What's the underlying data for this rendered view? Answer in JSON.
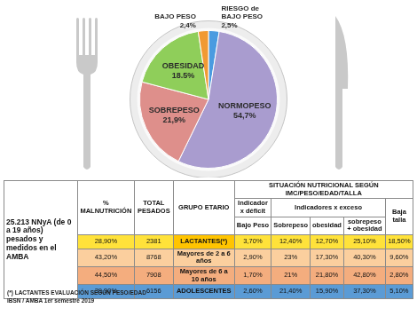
{
  "chart_data": {
    "type": "pie",
    "categories": [
      "RIESGO de BAJO PESO",
      "NORMOPESO",
      "SOBREPESO",
      "OBESIDAD",
      "BAJO PESO"
    ],
    "values": [
      2.5,
      54.7,
      21.9,
      18.5,
      2.4
    ],
    "value_labels": [
      "2,5%",
      "54,7%",
      "21,9%",
      "18.5%",
      "2,4%"
    ],
    "colors": [
      "#4a9be0",
      "#a99ccf",
      "#de8f8b",
      "#8fce5a",
      "#f19a33"
    ],
    "data_labels": true
  },
  "table": {
    "title": "25.213 NNyA (de 0 a 19 años) pesados y medidos en el AMBA",
    "columns": [
      "% MALNUTRICIÓN",
      "TOTAL PESADOS",
      "GRUPO ETARIO"
    ],
    "group": "SITUACIÓN NUTRICIONAL SEGÚN IMC/PESO/EDAD/TALLA",
    "deficit": {
      "label": "Indicador x déficit",
      "columns": [
        "Bajo Peso"
      ]
    },
    "exceso": {
      "label": "Indicadores x exceso",
      "columns": [
        "Sobrepeso",
        "obesidad",
        "sobrepeso + obesidad"
      ]
    },
    "baja_talla": "Baja talla",
    "rows": [
      [
        "28,90%",
        "2381",
        "LACTANTES(*)",
        "3,70%",
        "12,40%",
        "12,70%",
        "25,10%",
        "18,50%"
      ],
      [
        "43,20%",
        "8768",
        "Mayores de 2 a 6 años",
        "2,90%",
        "23%",
        "17,30%",
        "40,30%",
        "9,60%"
      ],
      [
        "44,50%",
        "7908",
        "Mayores de 6 a 10 años",
        "1,70%",
        "21%",
        "21,80%",
        "42,80%",
        "2,80%"
      ],
      [
        "39,90%",
        "6156",
        "ADOLESCENTES",
        "2,60%",
        "21,40%",
        "15,90%",
        "37,30%",
        "5,10%"
      ]
    ]
  },
  "footnotes": [
    "(*) LACTANTES EVALUACIÓN SEGÚN PESO/EDAD",
    "IBSN / AMBA 1er semestre 2019"
  ]
}
